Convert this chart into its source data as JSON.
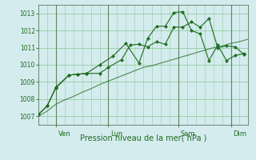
{
  "title": "",
  "xlabel": "Pression niveau de la mer( hPa )",
  "bg_color": "#d4ecee",
  "grid_color": "#5aaa5a",
  "line_color": "#1e6b1e",
  "tick_color": "#5a7a5a",
  "ylim": [
    1006.5,
    1013.5
  ],
  "yticks": [
    1007,
    1008,
    1009,
    1010,
    1011,
    1012,
    1013
  ],
  "xlim": [
    0,
    96
  ],
  "day_ticks": [
    8,
    32,
    64,
    88
  ],
  "day_labels": [
    "Ven",
    "Lun",
    "Sam",
    "Dim"
  ],
  "series1_x": [
    0,
    2,
    4,
    6,
    8,
    12,
    16,
    20,
    24,
    28,
    32,
    36,
    40,
    44,
    48,
    52,
    56,
    60,
    64,
    68,
    72,
    76,
    80,
    84,
    88,
    92,
    96
  ],
  "series1_y": [
    1007.0,
    1007.15,
    1007.3,
    1007.5,
    1007.7,
    1007.95,
    1008.15,
    1008.4,
    1008.6,
    1008.85,
    1009.05,
    1009.25,
    1009.45,
    1009.65,
    1009.85,
    1009.95,
    1010.1,
    1010.25,
    1010.4,
    1010.55,
    1010.7,
    1010.85,
    1011.0,
    1011.1,
    1011.25,
    1011.35,
    1011.5
  ],
  "series2_x": [
    0,
    4,
    8,
    14,
    18,
    22,
    28,
    32,
    38,
    42,
    46,
    50,
    54,
    58,
    62,
    66,
    70,
    74,
    78,
    82,
    86,
    90,
    94
  ],
  "series2_y": [
    1007.1,
    1007.6,
    1008.7,
    1009.4,
    1009.45,
    1009.5,
    1009.5,
    1009.85,
    1010.3,
    1011.15,
    1011.2,
    1011.05,
    1011.35,
    1011.2,
    1012.2,
    1012.2,
    1012.5,
    1012.2,
    1012.7,
    1011.0,
    1011.1,
    1011.05,
    1010.6
  ],
  "series3_x": [
    0,
    4,
    8,
    14,
    18,
    22,
    28,
    34,
    40,
    46,
    50,
    54,
    58,
    62,
    66,
    70,
    74,
    78,
    82,
    86,
    90,
    94
  ],
  "series3_y": [
    1007.1,
    1007.6,
    1008.65,
    1009.4,
    1009.45,
    1009.5,
    1010.0,
    1010.5,
    1011.25,
    1010.1,
    1011.55,
    1012.25,
    1012.25,
    1013.05,
    1013.1,
    1012.0,
    1011.8,
    1010.25,
    1011.15,
    1010.25,
    1010.55,
    1010.65
  ]
}
